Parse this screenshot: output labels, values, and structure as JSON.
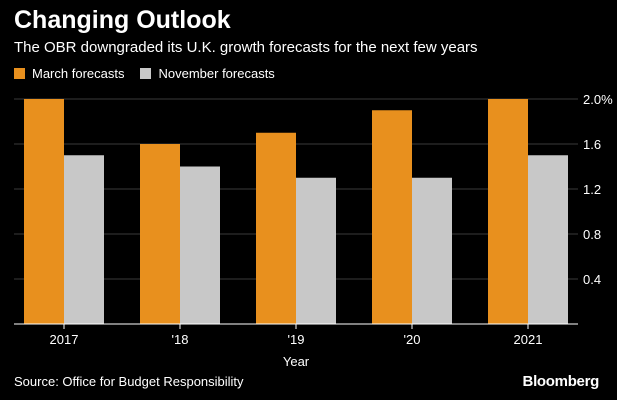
{
  "header": {
    "title": "Changing Outlook",
    "subtitle": "The OBR downgraded its U.K. growth forecasts for the next few years"
  },
  "footer": {
    "source": "Source: Office for Budget Responsibility",
    "logo": "Bloomberg"
  },
  "colors": {
    "background": "#000000",
    "march": "#e8901e",
    "november": "#c8c8c8",
    "grid": "#3a3a3a",
    "axis_text": "#ffffff"
  },
  "chart_data": {
    "type": "bar",
    "categories": [
      "2017",
      "'18",
      "'19",
      "'20",
      "2021"
    ],
    "series": [
      {
        "name": "March forecasts",
        "values": [
          2.0,
          1.6,
          1.7,
          1.9,
          2.0
        ]
      },
      {
        "name": "November forecasts",
        "values": [
          1.5,
          1.4,
          1.3,
          1.3,
          1.5
        ]
      }
    ],
    "xlabel": "Year",
    "ylabel": "",
    "ylim": [
      0,
      2.0
    ],
    "yticks": [
      {
        "value": 0.4,
        "label": "0.4"
      },
      {
        "value": 0.8,
        "label": "0.8"
      },
      {
        "value": 1.2,
        "label": "1.2"
      },
      {
        "value": 1.6,
        "label": "1.6"
      },
      {
        "value": 2.0,
        "label": "2.0%"
      }
    ],
    "grid": true,
    "legend_position": "top-left",
    "y_axis_side": "right"
  }
}
